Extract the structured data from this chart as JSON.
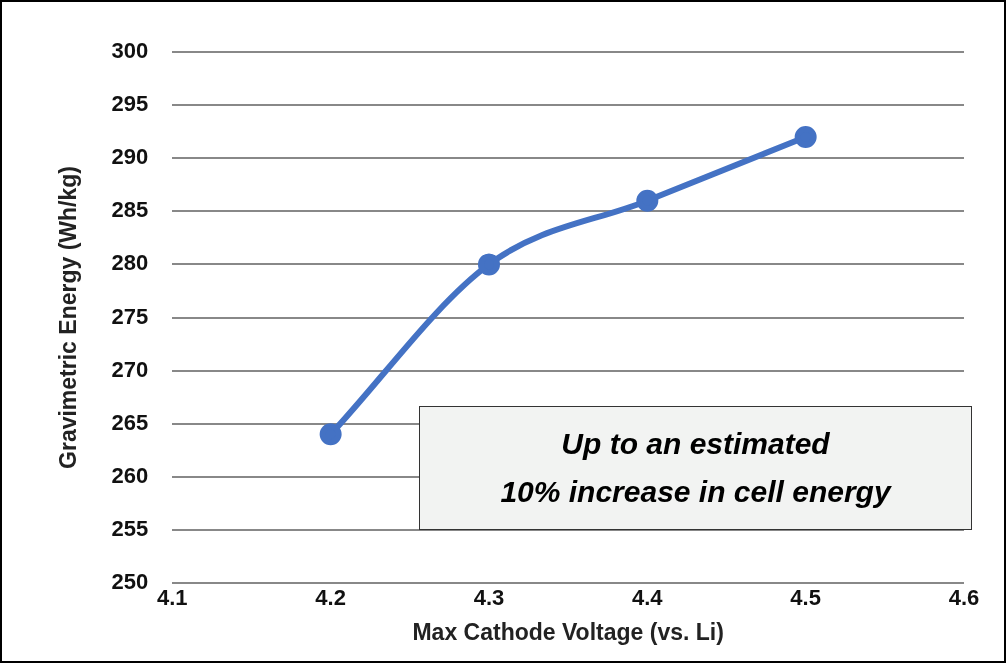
{
  "chart_data": {
    "type": "line",
    "xlabel": "Max Cathode Voltage (vs. Li)",
    "ylabel": "Gravimetric Energy (Wh/kg)",
    "x": [
      4.2,
      4.3,
      4.4,
      4.5
    ],
    "series": [
      {
        "color": "#4472c4",
        "values": [
          264,
          280,
          286,
          292
        ]
      }
    ],
    "xlim": [
      4.1,
      4.6
    ],
    "xticks": [
      4.1,
      4.2,
      4.3,
      4.4,
      4.5,
      4.6
    ],
    "ylim": [
      250,
      300
    ],
    "yticks": [
      250,
      255,
      260,
      265,
      270,
      275,
      280,
      285,
      290,
      295,
      300
    ],
    "grid": "y",
    "marker": "circle",
    "line_style": "solid",
    "annotations": [
      "Up to an estimated\n10% increase in cell energy"
    ]
  }
}
